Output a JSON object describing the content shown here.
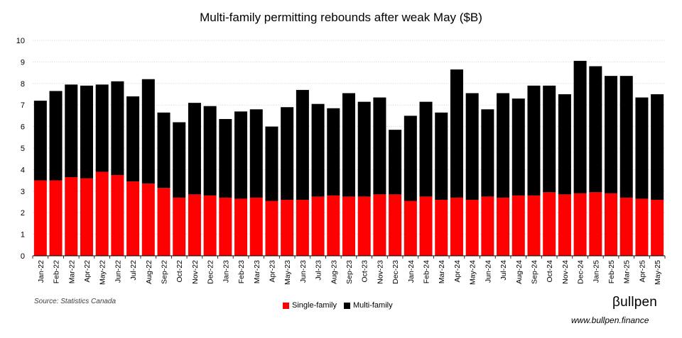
{
  "chart_data": {
    "type": "bar",
    "stacked": true,
    "title": "Multi-family permitting rebounds after weak May ($B)",
    "xlabel": "",
    "ylabel": "",
    "ylim": [
      0,
      10
    ],
    "yticks": [
      0,
      1,
      2,
      3,
      4,
      5,
      6,
      7,
      8,
      9,
      10
    ],
    "grid": true,
    "legend_position": "bottom",
    "categories": [
      "Jan-22",
      "Feb-22",
      "Mar-22",
      "Apr-22",
      "May-22",
      "Jun-22",
      "Jul-22",
      "Aug-22",
      "Sep-22",
      "Oct-22",
      "Nov-22",
      "Dec-22",
      "Jan-23",
      "Feb-23",
      "Mar-23",
      "Apr-23",
      "May-23",
      "Jun-23",
      "Jul-23",
      "Aug-23",
      "Sep-23",
      "Oct-23",
      "Nov-23",
      "Dec-23",
      "Jan-24",
      "Feb-24",
      "Mar-24",
      "Apr-24",
      "May-24",
      "Jun-24",
      "Jul-24",
      "Aug-24",
      "Sep-24",
      "Oct-24",
      "Nov-24",
      "Dec-24",
      "Jan-25",
      "Feb-25",
      "Mar-25",
      "Apr-25",
      "May-25"
    ],
    "series": [
      {
        "name": "Single-family",
        "color": "#ff0000",
        "values": [
          3.5,
          3.5,
          3.65,
          3.6,
          3.9,
          3.75,
          3.45,
          3.35,
          3.15,
          2.7,
          2.85,
          2.8,
          2.7,
          2.65,
          2.7,
          2.55,
          2.6,
          2.6,
          2.75,
          2.8,
          2.75,
          2.75,
          2.85,
          2.85,
          2.55,
          2.75,
          2.6,
          2.7,
          2.6,
          2.75,
          2.7,
          2.8,
          2.8,
          2.95,
          2.85,
          2.9,
          2.95,
          2.9,
          2.7,
          2.65,
          2.6
        ]
      },
      {
        "name": "Multi-family",
        "color": "#000000",
        "values": [
          3.7,
          4.15,
          4.3,
          4.3,
          4.05,
          4.35,
          3.95,
          4.85,
          3.5,
          3.5,
          4.25,
          4.15,
          3.65,
          4.05,
          4.1,
          3.45,
          4.3,
          5.1,
          4.3,
          4.05,
          4.8,
          4.4,
          4.5,
          3.0,
          3.95,
          4.4,
          4.05,
          5.95,
          4.95,
          4.05,
          4.85,
          4.5,
          5.1,
          4.95,
          4.65,
          6.15,
          5.85,
          5.45,
          5.65,
          4.7,
          4.9
        ]
      }
    ]
  },
  "source": "Source: Statistics Canada",
  "brand": "βullpen",
  "url": "www.bullpen.finance"
}
